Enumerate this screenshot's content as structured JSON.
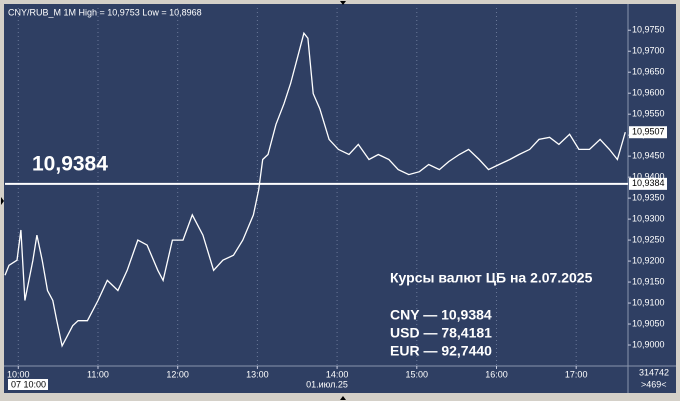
{
  "chart_data": {
    "type": "line",
    "title": "CNY/RUB_M 1M High = 10,9753 Low = 10,8968",
    "x": [
      "09:50",
      "09:53",
      "09:59",
      "10:02",
      "10:05",
      "10:11",
      "10:14",
      "10:18",
      "10:22",
      "10:26",
      "10:29",
      "10:33",
      "10:37",
      "10:41",
      "10:45",
      "10:52",
      "11:00",
      "11:07",
      "11:15",
      "11:22",
      "11:30",
      "11:37",
      "11:45",
      "11:49",
      "11:56",
      "12:04",
      "12:11",
      "12:19",
      "12:27",
      "12:34",
      "12:42",
      "12:49",
      "12:57",
      "13:01",
      "13:04",
      "13:08",
      "13:14",
      "13:20",
      "13:25",
      "13:31",
      "13:35",
      "13:38",
      "13:42",
      "13:47",
      "13:54",
      "14:01",
      "14:09",
      "14:16",
      "14:24",
      "14:31",
      "14:39",
      "14:46",
      "14:54",
      "15:02",
      "15:09",
      "15:17",
      "15:24",
      "15:32",
      "15:39",
      "15:47",
      "15:54",
      "16:02",
      "16:10",
      "16:17",
      "16:25",
      "16:32",
      "16:40",
      "16:47",
      "16:55",
      "17:02",
      "17:10",
      "17:18",
      "17:25",
      "17:31",
      "17:37"
    ],
    "values": [
      10.9166,
      10.919,
      10.9202,
      10.9274,
      10.9106,
      10.9202,
      10.9262,
      10.9202,
      10.913,
      10.9106,
      10.9058,
      10.8998,
      10.9022,
      10.9046,
      10.9058,
      10.9058,
      10.9106,
      10.9154,
      10.913,
      10.9178,
      10.925,
      10.9238,
      10.9178,
      10.9154,
      10.925,
      10.925,
      10.931,
      10.9262,
      10.9178,
      10.9202,
      10.9214,
      10.925,
      10.931,
      10.937,
      10.9442,
      10.9454,
      10.9526,
      10.9575,
      10.9623,
      10.9695,
      10.9743,
      10.9731,
      10.9599,
      10.9563,
      10.949,
      10.9466,
      10.9454,
      10.9478,
      10.9442,
      10.9454,
      10.9442,
      10.9418,
      10.9406,
      10.9413,
      10.943,
      10.9418,
      10.9437,
      10.9454,
      10.9466,
      10.9442,
      10.9418,
      10.943,
      10.9442,
      10.9454,
      10.9466,
      10.949,
      10.9495,
      10.9478,
      10.9502,
      10.9466,
      10.9466,
      10.949,
      10.9466,
      10.9442,
      10.9507
    ],
    "color": "#ffffff",
    "xlim": [
      "09:50",
      "17:39"
    ],
    "xticks": [
      "10:00",
      "11:00",
      "12:00",
      "13:00",
      "14:00",
      "15:00",
      "16:00",
      "17:00"
    ],
    "ylim": [
      10.895,
      10.9803
    ],
    "yticks": [
      {
        "value": 10.9,
        "label": "10,9000"
      },
      {
        "value": 10.905,
        "label": "10,9050"
      },
      {
        "value": 10.91,
        "label": "10,9100"
      },
      {
        "value": 10.915,
        "label": "10,9150"
      },
      {
        "value": 10.92,
        "label": "10,9200"
      },
      {
        "value": 10.925,
        "label": "10,9250"
      },
      {
        "value": 10.93,
        "label": "10,9300"
      },
      {
        "value": 10.935,
        "label": "10,9350"
      },
      {
        "value": 10.94,
        "label": "10,9400"
      },
      {
        "value": 10.945,
        "label": "10,9450"
      },
      {
        "value": 10.95,
        "label": "10,9500"
      },
      {
        "value": 10.955,
        "label": "10,9550"
      },
      {
        "value": 10.96,
        "label": "10,9600"
      },
      {
        "value": 10.965,
        "label": "10,9650"
      },
      {
        "value": 10.97,
        "label": "10,9700"
      },
      {
        "value": 10.975,
        "label": "10,9750"
      }
    ],
    "grid": true,
    "level": {
      "value": 10.9384,
      "label": "10,9384"
    },
    "last_price": {
      "value": 10.9507,
      "label": "10,9507"
    },
    "annotations": [
      "Курсы валют ЦБ на 2.07.2025",
      "CNY — 10,9384",
      "USD — 78,4181",
      "EUR — 92,7440"
    ],
    "cursor_time": "07 10:00",
    "date_label": "01.июл.25",
    "status": [
      "314742",
      ">469<"
    ]
  }
}
